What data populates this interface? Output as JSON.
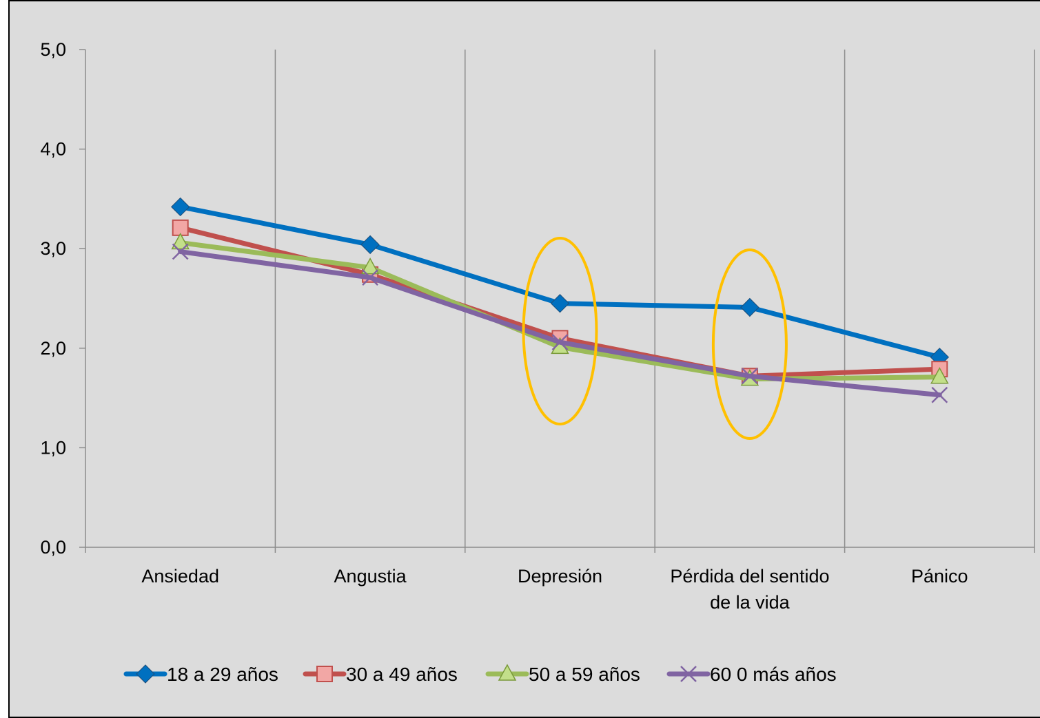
{
  "chart_data": {
    "type": "line",
    "categories": [
      "Ansiedad",
      "Angustia",
      "Depresión",
      "Pérdida del sentido de la vida",
      "Pánico"
    ],
    "category_lines": [
      [
        "Ansiedad"
      ],
      [
        "Angustia"
      ],
      [
        "Depresión"
      ],
      [
        "Pérdida del sentido",
        "de la vida"
      ],
      [
        "Pánico"
      ]
    ],
    "ylim": [
      0,
      5
    ],
    "yticks": [
      "0,0",
      "1,0",
      "2,0",
      "3,0",
      "4,0",
      "5,0"
    ],
    "grid": "vertical",
    "legend_position": "bottom",
    "series": [
      {
        "name": "18 a 29 años",
        "values": [
          3.42,
          3.04,
          2.45,
          2.41,
          1.91
        ],
        "color": "#0070c0",
        "marker": "diamond"
      },
      {
        "name": "30 a 49 años",
        "values": [
          3.21,
          2.74,
          2.1,
          1.72,
          1.79
        ],
        "color": "#c0504d",
        "marker": "square"
      },
      {
        "name": "50 a 59 años",
        "values": [
          3.06,
          2.81,
          2.01,
          1.69,
          1.71
        ],
        "color": "#9bbb59",
        "marker": "triangle"
      },
      {
        "name": "60 0 más años",
        "values": [
          2.97,
          2.71,
          2.06,
          1.72,
          1.53
        ],
        "color": "#8064a2",
        "marker": "x"
      }
    ],
    "highlights": [
      {
        "category": "Depresión",
        "color": "#ffc000"
      },
      {
        "category": "Pérdida del sentido de la vida",
        "color": "#ffc000"
      }
    ]
  }
}
